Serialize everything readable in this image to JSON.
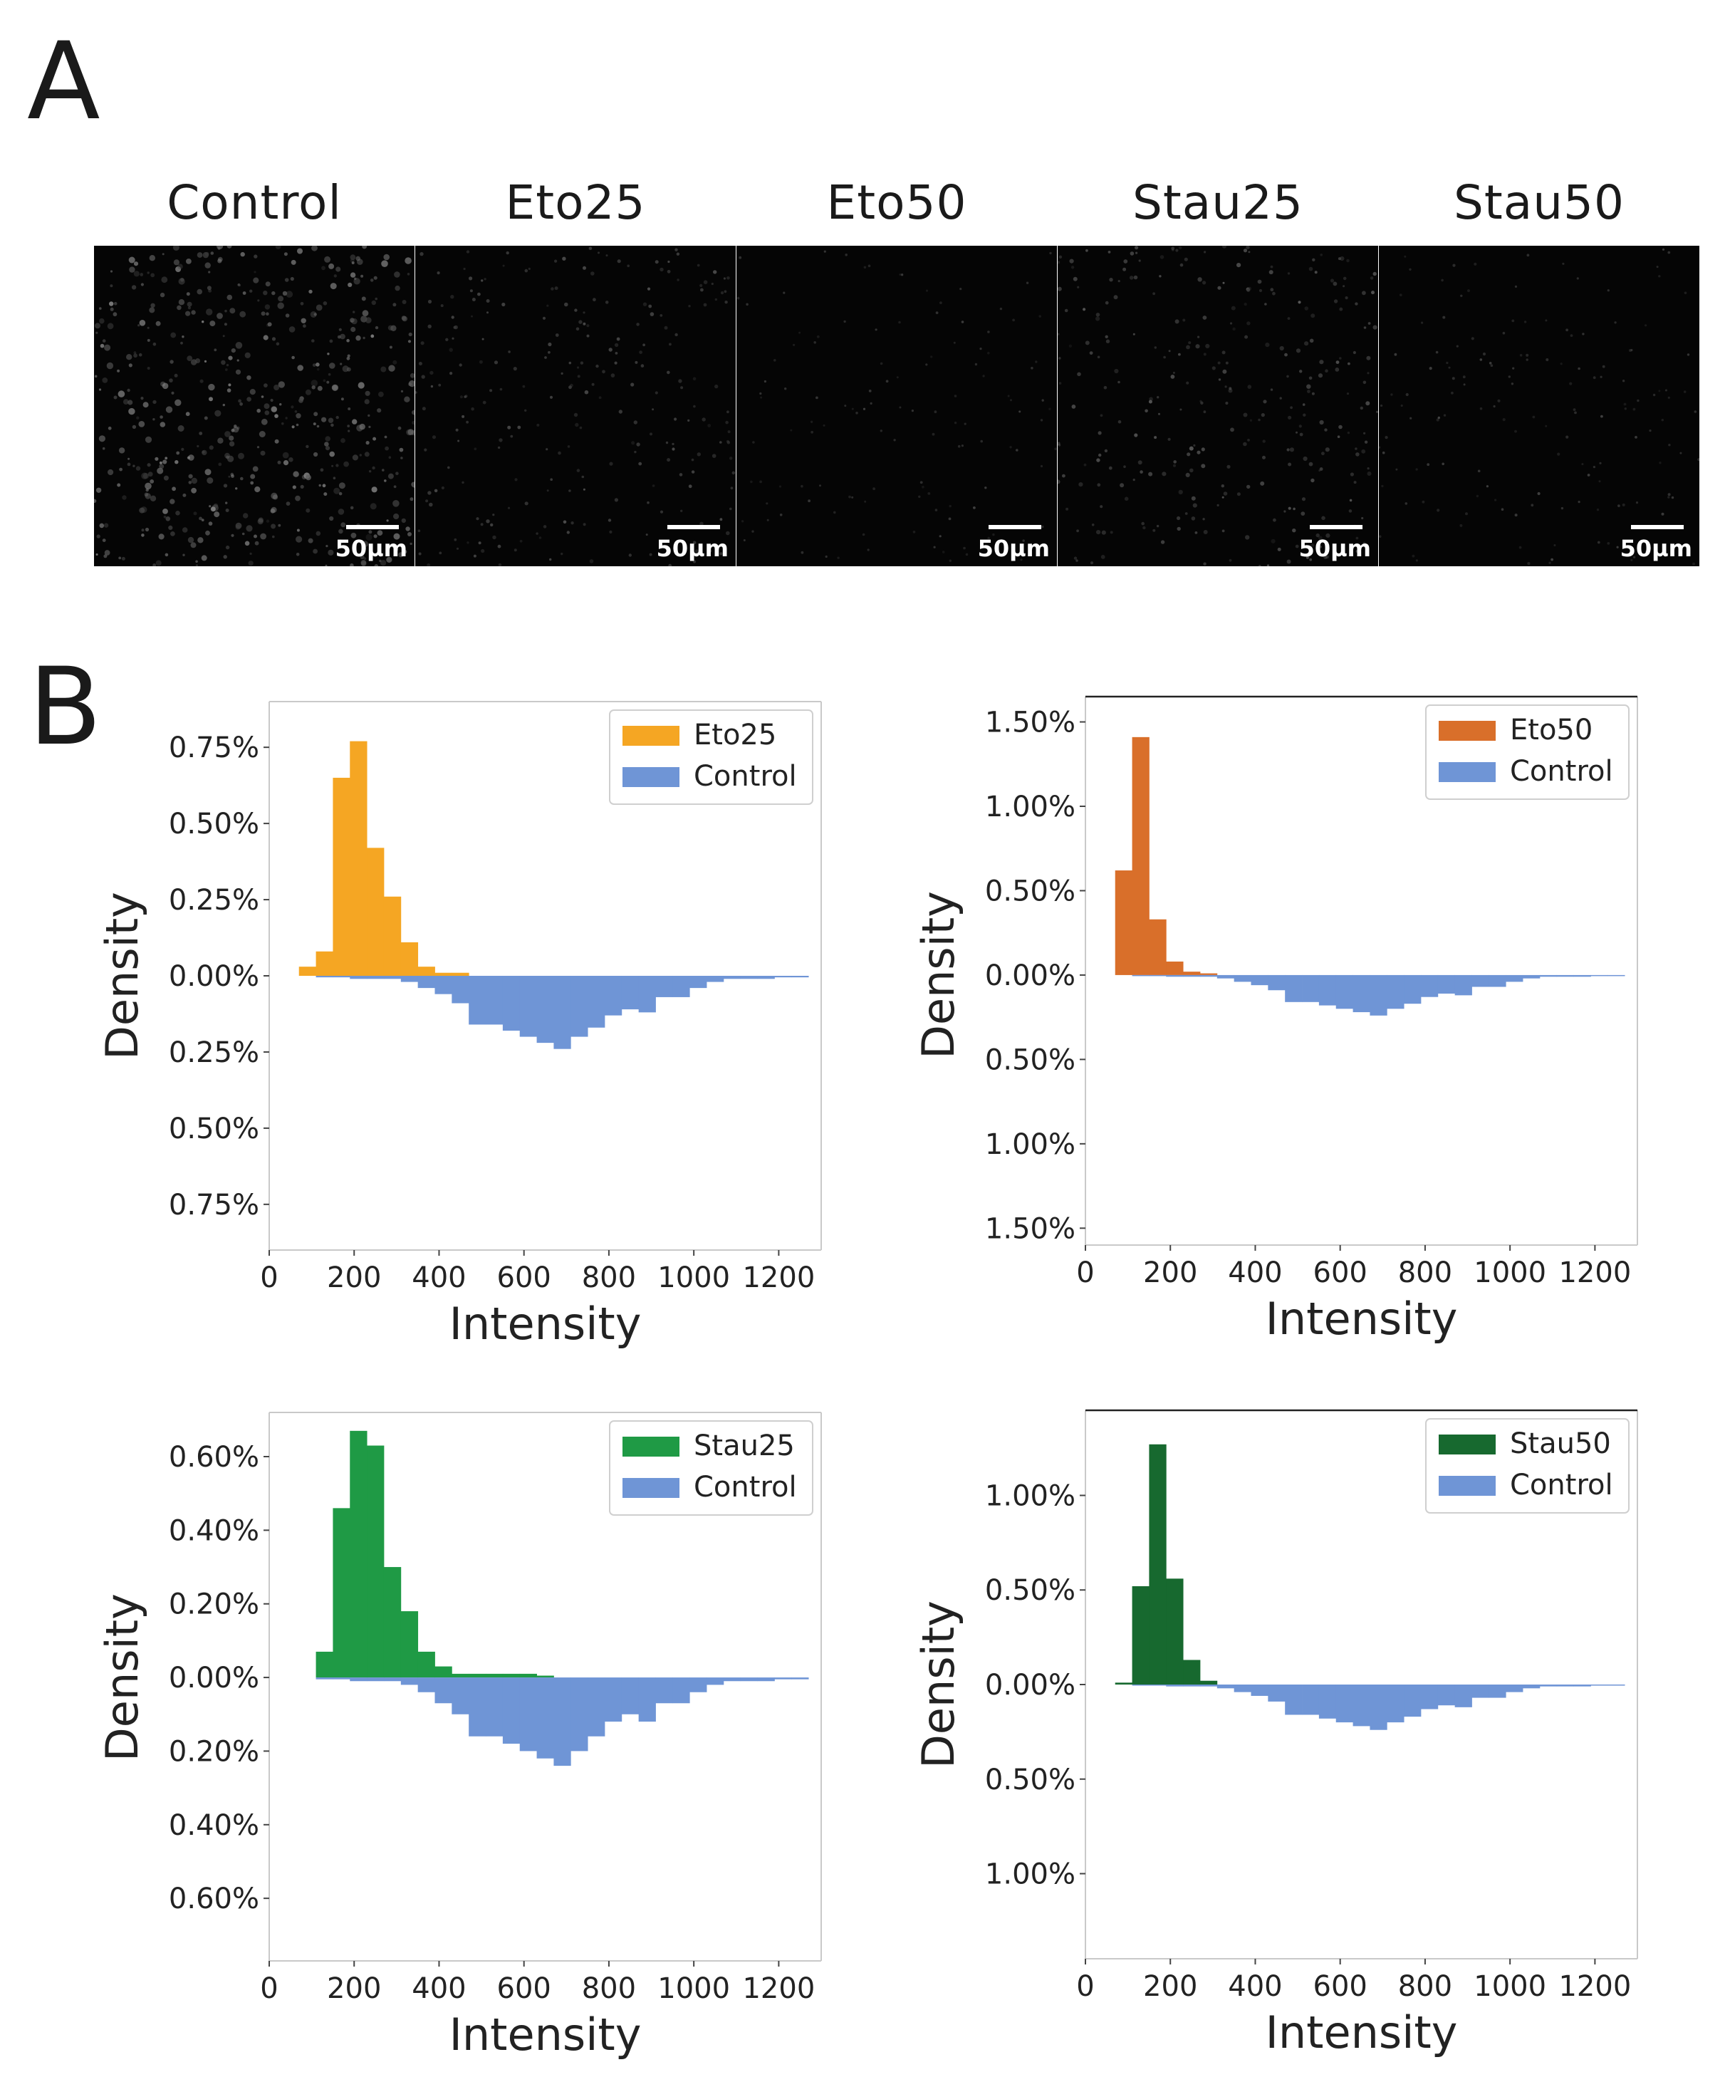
{
  "panel_a": {
    "label": "A",
    "images": [
      {
        "title": "Control",
        "scale": "50µm",
        "brightness": 0.55,
        "seed": 11
      },
      {
        "title": "Eto25",
        "scale": "50µm",
        "brightness": 0.22,
        "seed": 23
      },
      {
        "title": "Eto50",
        "scale": "50µm",
        "brightness": 0.07,
        "seed": 37
      },
      {
        "title": "Stau25",
        "scale": "50µm",
        "brightness": 0.28,
        "seed": 51
      },
      {
        "title": "Stau50",
        "scale": "50µm",
        "brightness": 0.1,
        "seed": 73
      }
    ]
  },
  "panel_b": {
    "label": "B"
  },
  "chart_data": [
    {
      "type": "bar",
      "xlabel": "Intensity",
      "ylabel": "Density",
      "xlim": [
        0,
        1300
      ],
      "xticks": [
        0,
        200,
        400,
        600,
        800,
        1000,
        1200
      ],
      "ylim": [
        -0.9,
        0.9
      ],
      "yticks": [
        0.75,
        0.5,
        0.25,
        0.0,
        -0.25,
        -0.5,
        -0.75
      ],
      "ytick_labels": [
        "0.75%",
        "0.50%",
        "0.25%",
        "0.00%",
        "0.25%",
        "0.50%",
        "0.75%"
      ],
      "legend": "top-right",
      "bin_width": 40,
      "series": [
        {
          "name": "Eto25",
          "color": "#f5a623",
          "direction": "up",
          "x": [
            70,
            110,
            150,
            190,
            230,
            270,
            310,
            350,
            390,
            430
          ],
          "values": [
            0.03,
            0.08,
            0.65,
            0.77,
            0.42,
            0.26,
            0.11,
            0.03,
            0.01,
            0.01
          ]
        },
        {
          "name": "Control",
          "color": "#6f95d6",
          "direction": "down",
          "x": [
            110,
            150,
            190,
            230,
            270,
            310,
            350,
            390,
            430,
            470,
            510,
            550,
            590,
            630,
            670,
            710,
            750,
            790,
            830,
            870,
            910,
            950,
            990,
            1030,
            1070,
            1110,
            1150,
            1190,
            1230
          ],
          "values": [
            0.005,
            0.005,
            0.01,
            0.01,
            0.01,
            0.02,
            0.04,
            0.06,
            0.09,
            0.16,
            0.16,
            0.18,
            0.2,
            0.22,
            0.24,
            0.2,
            0.17,
            0.13,
            0.11,
            0.12,
            0.07,
            0.07,
            0.04,
            0.02,
            0.01,
            0.01,
            0.01,
            0.005,
            0.005
          ]
        }
      ]
    },
    {
      "type": "bar",
      "xlabel": "Intensity",
      "ylabel": "Density",
      "xlim": [
        0,
        1300
      ],
      "xticks": [
        0,
        200,
        400,
        600,
        800,
        1000,
        1200
      ],
      "ylim": [
        -1.6,
        1.65
      ],
      "yticks": [
        1.5,
        1.0,
        0.5,
        0.0,
        -0.5,
        -1.0,
        -1.5
      ],
      "ytick_labels": [
        "1.50%",
        "1.00%",
        "0.50%",
        "0.00%",
        "0.50%",
        "1.00%",
        "1.50%"
      ],
      "legend": "top-right",
      "bin_width": 40,
      "series": [
        {
          "name": "Eto50",
          "color": "#d96f2a",
          "direction": "up",
          "x": [
            70,
            110,
            150,
            190,
            230,
            270
          ],
          "values": [
            0.62,
            1.41,
            0.33,
            0.08,
            0.02,
            0.01
          ]
        },
        {
          "name": "Control",
          "color": "#6f95d6",
          "direction": "down",
          "x": [
            110,
            150,
            190,
            230,
            270,
            310,
            350,
            390,
            430,
            470,
            510,
            550,
            590,
            630,
            670,
            710,
            750,
            790,
            830,
            870,
            910,
            950,
            990,
            1030,
            1070,
            1110,
            1150,
            1190,
            1230
          ],
          "values": [
            0.005,
            0.005,
            0.01,
            0.01,
            0.01,
            0.02,
            0.04,
            0.06,
            0.09,
            0.16,
            0.16,
            0.18,
            0.2,
            0.22,
            0.24,
            0.2,
            0.17,
            0.13,
            0.11,
            0.12,
            0.07,
            0.07,
            0.04,
            0.02,
            0.01,
            0.01,
            0.01,
            0.005,
            0.005
          ]
        }
      ]
    },
    {
      "type": "bar",
      "xlabel": "Intensity",
      "ylabel": "Density",
      "xlim": [
        0,
        1300
      ],
      "xticks": [
        0,
        200,
        400,
        600,
        800,
        1000,
        1200
      ],
      "ylim": [
        -0.77,
        0.72
      ],
      "yticks": [
        0.6,
        0.4,
        0.2,
        0.0,
        -0.2,
        -0.4,
        -0.6
      ],
      "ytick_labels": [
        "0.60%",
        "0.40%",
        "0.20%",
        "0.00%",
        "0.20%",
        "0.40%",
        "0.60%"
      ],
      "legend": "top-right",
      "bin_width": 40,
      "series": [
        {
          "name": "Stau25",
          "color": "#1f9a45",
          "direction": "up",
          "x": [
            110,
            150,
            190,
            230,
            270,
            310,
            350,
            390,
            430,
            470,
            510,
            550,
            590,
            630
          ],
          "values": [
            0.07,
            0.46,
            0.67,
            0.63,
            0.3,
            0.18,
            0.07,
            0.03,
            0.01,
            0.01,
            0.01,
            0.01,
            0.01,
            0.005
          ]
        },
        {
          "name": "Control",
          "color": "#6f95d6",
          "direction": "down",
          "x": [
            110,
            150,
            190,
            230,
            270,
            310,
            350,
            390,
            430,
            470,
            510,
            550,
            590,
            630,
            670,
            710,
            750,
            790,
            830,
            870,
            910,
            950,
            990,
            1030,
            1070,
            1110,
            1150,
            1190,
            1230
          ],
          "values": [
            0.005,
            0.005,
            0.01,
            0.01,
            0.01,
            0.02,
            0.04,
            0.07,
            0.1,
            0.16,
            0.16,
            0.18,
            0.2,
            0.22,
            0.24,
            0.2,
            0.16,
            0.12,
            0.1,
            0.12,
            0.07,
            0.07,
            0.04,
            0.02,
            0.01,
            0.01,
            0.01,
            0.005,
            0.005
          ]
        }
      ]
    },
    {
      "type": "bar",
      "xlabel": "Intensity",
      "ylabel": "Density",
      "xlim": [
        0,
        1300
      ],
      "xticks": [
        0,
        200,
        400,
        600,
        800,
        1000,
        1200
      ],
      "ylim": [
        -1.45,
        1.45
      ],
      "yticks": [
        1.0,
        0.5,
        0.0,
        -0.5,
        -1.0
      ],
      "ytick_labels": [
        "1.00%",
        "0.50%",
        "0.00%",
        "0.50%",
        "1.00%"
      ],
      "legend": "top-right",
      "bin_width": 40,
      "series": [
        {
          "name": "Stau50",
          "color": "#17692f",
          "direction": "up",
          "x": [
            70,
            110,
            150,
            190,
            230,
            270
          ],
          "values": [
            0.01,
            0.52,
            1.27,
            0.56,
            0.13,
            0.02
          ]
        },
        {
          "name": "Control",
          "color": "#6f95d6",
          "direction": "down",
          "x": [
            110,
            150,
            190,
            230,
            270,
            310,
            350,
            390,
            430,
            470,
            510,
            550,
            590,
            630,
            670,
            710,
            750,
            790,
            830,
            870,
            910,
            950,
            990,
            1030,
            1070,
            1110,
            1150,
            1190,
            1230
          ],
          "values": [
            0.005,
            0.005,
            0.01,
            0.01,
            0.01,
            0.02,
            0.04,
            0.06,
            0.09,
            0.16,
            0.16,
            0.18,
            0.2,
            0.22,
            0.24,
            0.2,
            0.17,
            0.13,
            0.11,
            0.12,
            0.07,
            0.07,
            0.04,
            0.02,
            0.01,
            0.01,
            0.01,
            0.005,
            0.005
          ]
        }
      ]
    }
  ]
}
